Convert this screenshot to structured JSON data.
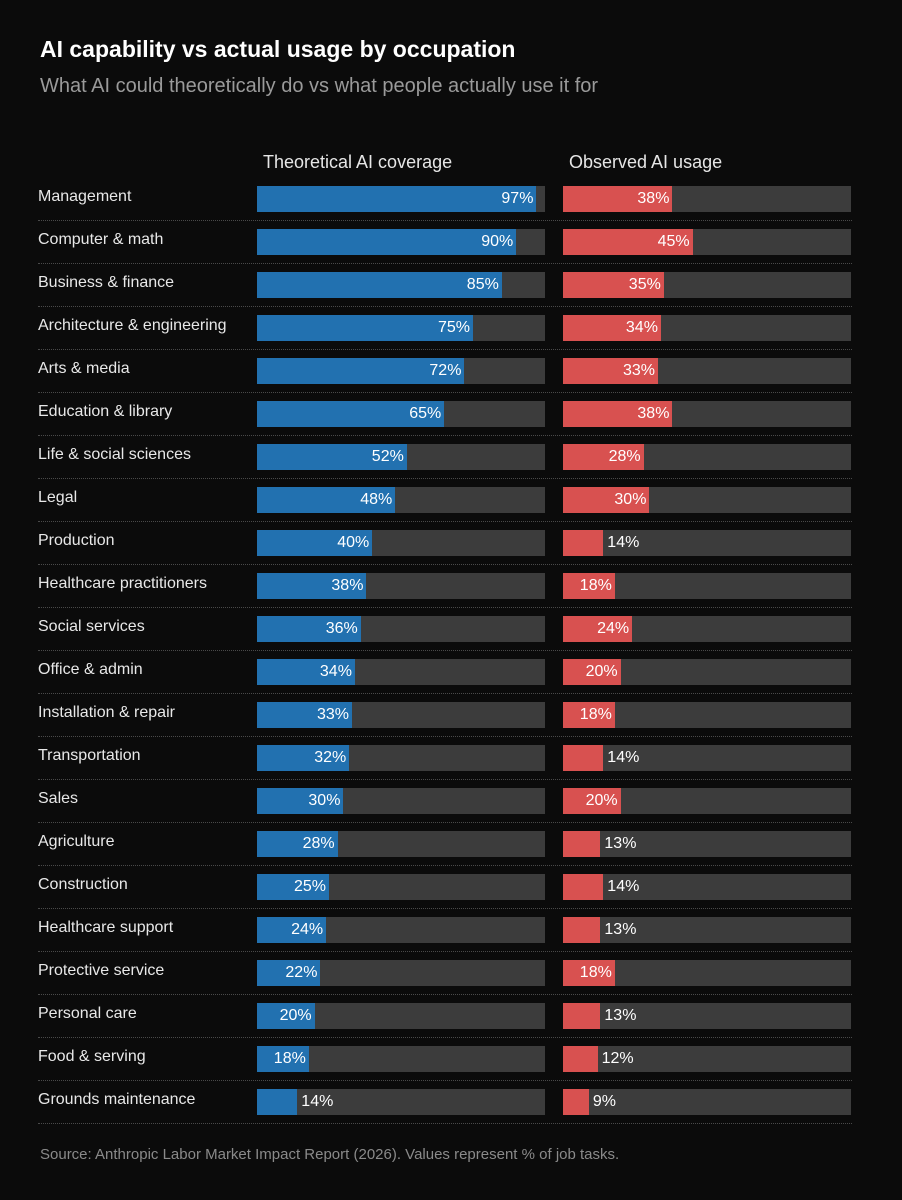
{
  "chart_data": {
    "type": "bar",
    "title": "AI capability vs actual usage by occupation",
    "subtitle": "What AI could theoretically do vs what people actually use it for",
    "categories": [
      "Management",
      "Computer & math",
      "Business & finance",
      "Architecture & engineering",
      "Arts & media",
      "Education & library",
      "Life & social sciences",
      "Legal",
      "Production",
      "Healthcare practitioners",
      "Social services",
      "Office & admin",
      "Installation & repair",
      "Transportation",
      "Sales",
      "Agriculture",
      "Construction",
      "Healthcare support",
      "Protective service",
      "Personal care",
      "Food & serving",
      "Grounds maintenance"
    ],
    "series": [
      {
        "name": "Theoretical AI coverage",
        "color": "#2271b0",
        "values": [
          97,
          90,
          85,
          75,
          72,
          65,
          52,
          48,
          40,
          38,
          36,
          34,
          33,
          32,
          30,
          28,
          25,
          24,
          22,
          20,
          18,
          14
        ]
      },
      {
        "name": "Observed AI usage",
        "color": "#d85150",
        "values": [
          38,
          45,
          35,
          34,
          33,
          38,
          28,
          30,
          14,
          18,
          24,
          20,
          18,
          14,
          20,
          13,
          14,
          13,
          18,
          13,
          12,
          9
        ]
      }
    ],
    "xlim": [
      0,
      100
    ],
    "unit": "%",
    "source": "Source: Anthropic Labor Market Impact Report (2026). Values represent % of job tasks."
  }
}
